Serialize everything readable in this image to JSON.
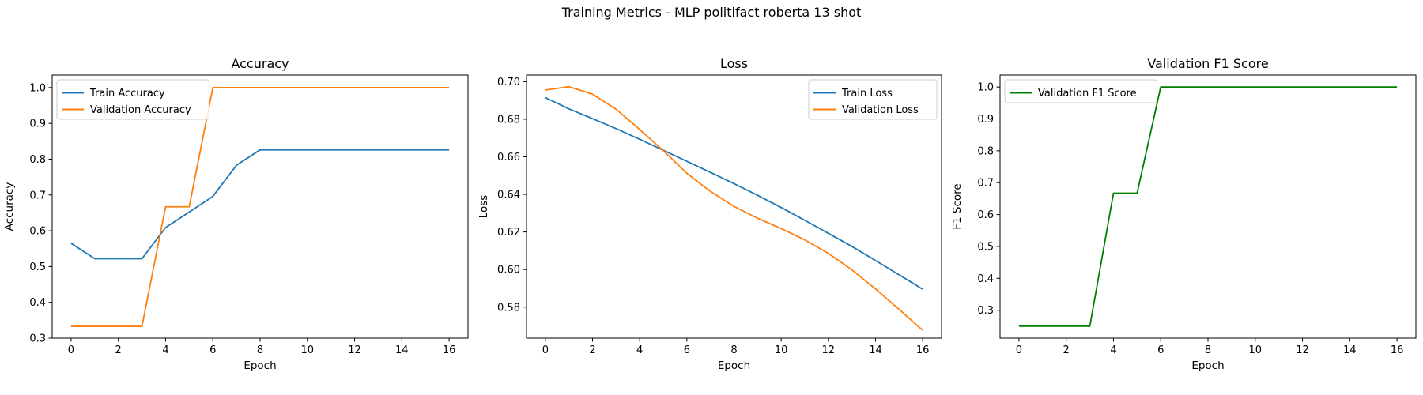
{
  "suptitle": "Training Metrics - MLP politifact roberta 13 shot",
  "colors": {
    "train": "#1f77b4",
    "validation": "#ff7f0e",
    "f1": "#008000"
  },
  "chart_data": [
    {
      "type": "line",
      "title": "Accuracy",
      "xlabel": "Epoch",
      "ylabel": "Accuracy",
      "xlim": [
        -0.8,
        16.8
      ],
      "ylim": [
        0.3,
        1.035
      ],
      "xticks": [
        0,
        2,
        4,
        6,
        8,
        10,
        12,
        14,
        16
      ],
      "yticks": [
        0.3,
        0.4,
        0.5,
        0.6,
        0.7,
        0.8,
        0.9,
        1.0
      ],
      "ytick_labels": [
        "0.3",
        "0.4",
        "0.5",
        "0.6",
        "0.7",
        "0.8",
        "0.9",
        "1.0"
      ],
      "legend_position": "upper left",
      "x": [
        0,
        1,
        2,
        3,
        4,
        5,
        6,
        7,
        8,
        9,
        10,
        11,
        12,
        13,
        14,
        15,
        16
      ],
      "series": [
        {
          "name": "Train Accuracy",
          "color": "#1f77b4",
          "values": [
            0.565,
            0.522,
            0.522,
            0.522,
            0.609,
            0.652,
            0.696,
            0.783,
            0.826,
            0.826,
            0.826,
            0.826,
            0.826,
            0.826,
            0.826,
            0.826,
            0.826
          ]
        },
        {
          "name": "Validation Accuracy",
          "color": "#ff7f0e",
          "values": [
            0.333,
            0.333,
            0.333,
            0.333,
            0.667,
            0.667,
            1.0,
            1.0,
            1.0,
            1.0,
            1.0,
            1.0,
            1.0,
            1.0,
            1.0,
            1.0,
            1.0
          ]
        }
      ]
    },
    {
      "type": "line",
      "title": "Loss",
      "xlabel": "Epoch",
      "ylabel": "Loss",
      "xlim": [
        -0.8,
        16.8
      ],
      "ylim": [
        0.5635,
        0.7035
      ],
      "xticks": [
        0,
        2,
        4,
        6,
        8,
        10,
        12,
        14,
        16
      ],
      "yticks": [
        0.58,
        0.6,
        0.62,
        0.64,
        0.66,
        0.68,
        0.7
      ],
      "ytick_labels": [
        "0.58",
        "0.60",
        "0.62",
        "0.64",
        "0.66",
        "0.68",
        "0.70"
      ],
      "legend_position": "upper right",
      "x": [
        0,
        1,
        2,
        3,
        4,
        5,
        6,
        7,
        8,
        9,
        10,
        11,
        12,
        13,
        14,
        15,
        16
      ],
      "series": [
        {
          "name": "Train Loss",
          "color": "#1f77b4",
          "values": [
            0.6915,
            0.6855,
            0.6803,
            0.675,
            0.6693,
            0.6635,
            0.6576,
            0.6517,
            0.6457,
            0.6395,
            0.633,
            0.6262,
            0.6193,
            0.6123,
            0.6048,
            0.5972,
            0.5895
          ]
        },
        {
          "name": "Validation Loss",
          "color": "#ff7f0e",
          "values": [
            0.6955,
            0.6973,
            0.6933,
            0.6853,
            0.6745,
            0.6633,
            0.6512,
            0.6416,
            0.6336,
            0.6273,
            0.6218,
            0.6158,
            0.6086,
            0.5998,
            0.5897,
            0.5788,
            0.5677
          ]
        }
      ]
    },
    {
      "type": "line",
      "title": "Validation F1 Score",
      "xlabel": "Epoch",
      "ylabel": "F1 Score",
      "xlim": [
        -0.8,
        16.8
      ],
      "ylim": [
        0.2125,
        1.0375
      ],
      "xticks": [
        0,
        2,
        4,
        6,
        8,
        10,
        12,
        14,
        16
      ],
      "yticks": [
        0.3,
        0.4,
        0.5,
        0.6,
        0.7,
        0.8,
        0.9,
        1.0
      ],
      "ytick_labels": [
        "0.3",
        "0.4",
        "0.5",
        "0.6",
        "0.7",
        "0.8",
        "0.9",
        "1.0"
      ],
      "legend_position": "upper left",
      "x": [
        0,
        1,
        2,
        3,
        4,
        5,
        6,
        7,
        8,
        9,
        10,
        11,
        12,
        13,
        14,
        15,
        16
      ],
      "series": [
        {
          "name": "Validation F1 Score",
          "color": "#008000",
          "values": [
            0.25,
            0.25,
            0.25,
            0.25,
            0.667,
            0.667,
            1.0,
            1.0,
            1.0,
            1.0,
            1.0,
            1.0,
            1.0,
            1.0,
            1.0,
            1.0,
            1.0
          ]
        }
      ]
    }
  ]
}
